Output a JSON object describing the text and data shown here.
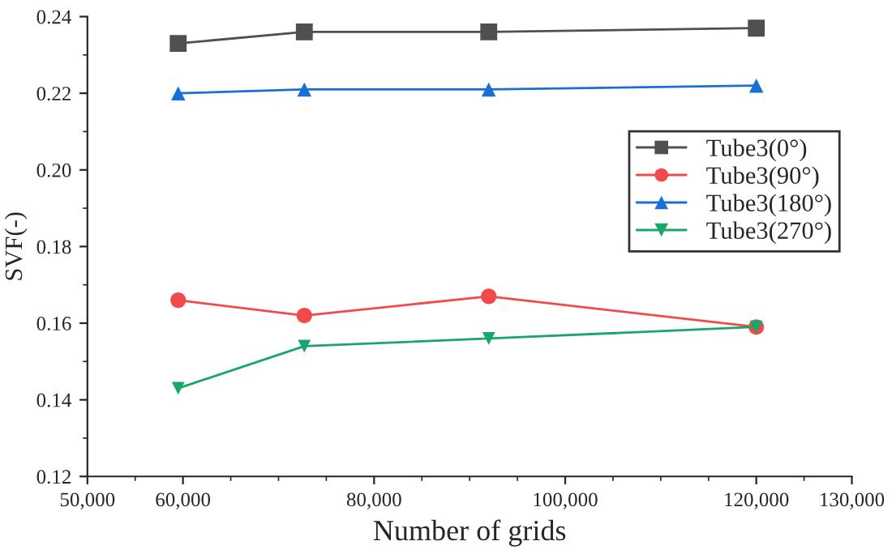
{
  "chart_data": {
    "type": "line",
    "xlabel": "Number of grids",
    "ylabel": "SVF(-)",
    "x": [
      59500,
      72700,
      92000,
      120000
    ],
    "series": [
      {
        "name": "Tube3(0°)",
        "color": "#505050",
        "marker": "square",
        "values": [
          0.233,
          0.236,
          0.236,
          0.237
        ]
      },
      {
        "name": "Tube3(90°)",
        "color": "#f04a4a",
        "marker": "circle",
        "values": [
          0.166,
          0.162,
          0.167,
          0.159
        ]
      },
      {
        "name": "Tube3(180°)",
        "color": "#1a6fd6",
        "marker": "triangle",
        "values": [
          0.22,
          0.221,
          0.221,
          0.222
        ]
      },
      {
        "name": "Tube3(270°)",
        "color": "#1aa66a",
        "marker": "triangle_down",
        "values": [
          0.143,
          0.154,
          0.156,
          0.159
        ]
      }
    ],
    "xlim": [
      50000,
      130000
    ],
    "xticks": [
      {
        "value": 50000,
        "label": "50,000"
      },
      {
        "value": 60000,
        "label": "60,000"
      },
      {
        "value": 80000,
        "label": "80,000"
      },
      {
        "value": 100000,
        "label": "100,000"
      },
      {
        "value": 120000,
        "label": "120,000"
      },
      {
        "value": 130000,
        "label": "130,000"
      }
    ],
    "ylim": [
      0.12,
      0.24
    ],
    "yticks": [
      {
        "value": 0.12,
        "label": "0.12"
      },
      {
        "value": 0.14,
        "label": "0.14"
      },
      {
        "value": 0.16,
        "label": "0.16"
      },
      {
        "value": 0.18,
        "label": "0.18"
      },
      {
        "value": 0.2,
        "label": "0.20"
      },
      {
        "value": 0.22,
        "label": "0.22"
      },
      {
        "value": 0.24,
        "label": "0.24"
      }
    ],
    "grid": false,
    "legend": "right",
    "line_style": "solid"
  }
}
